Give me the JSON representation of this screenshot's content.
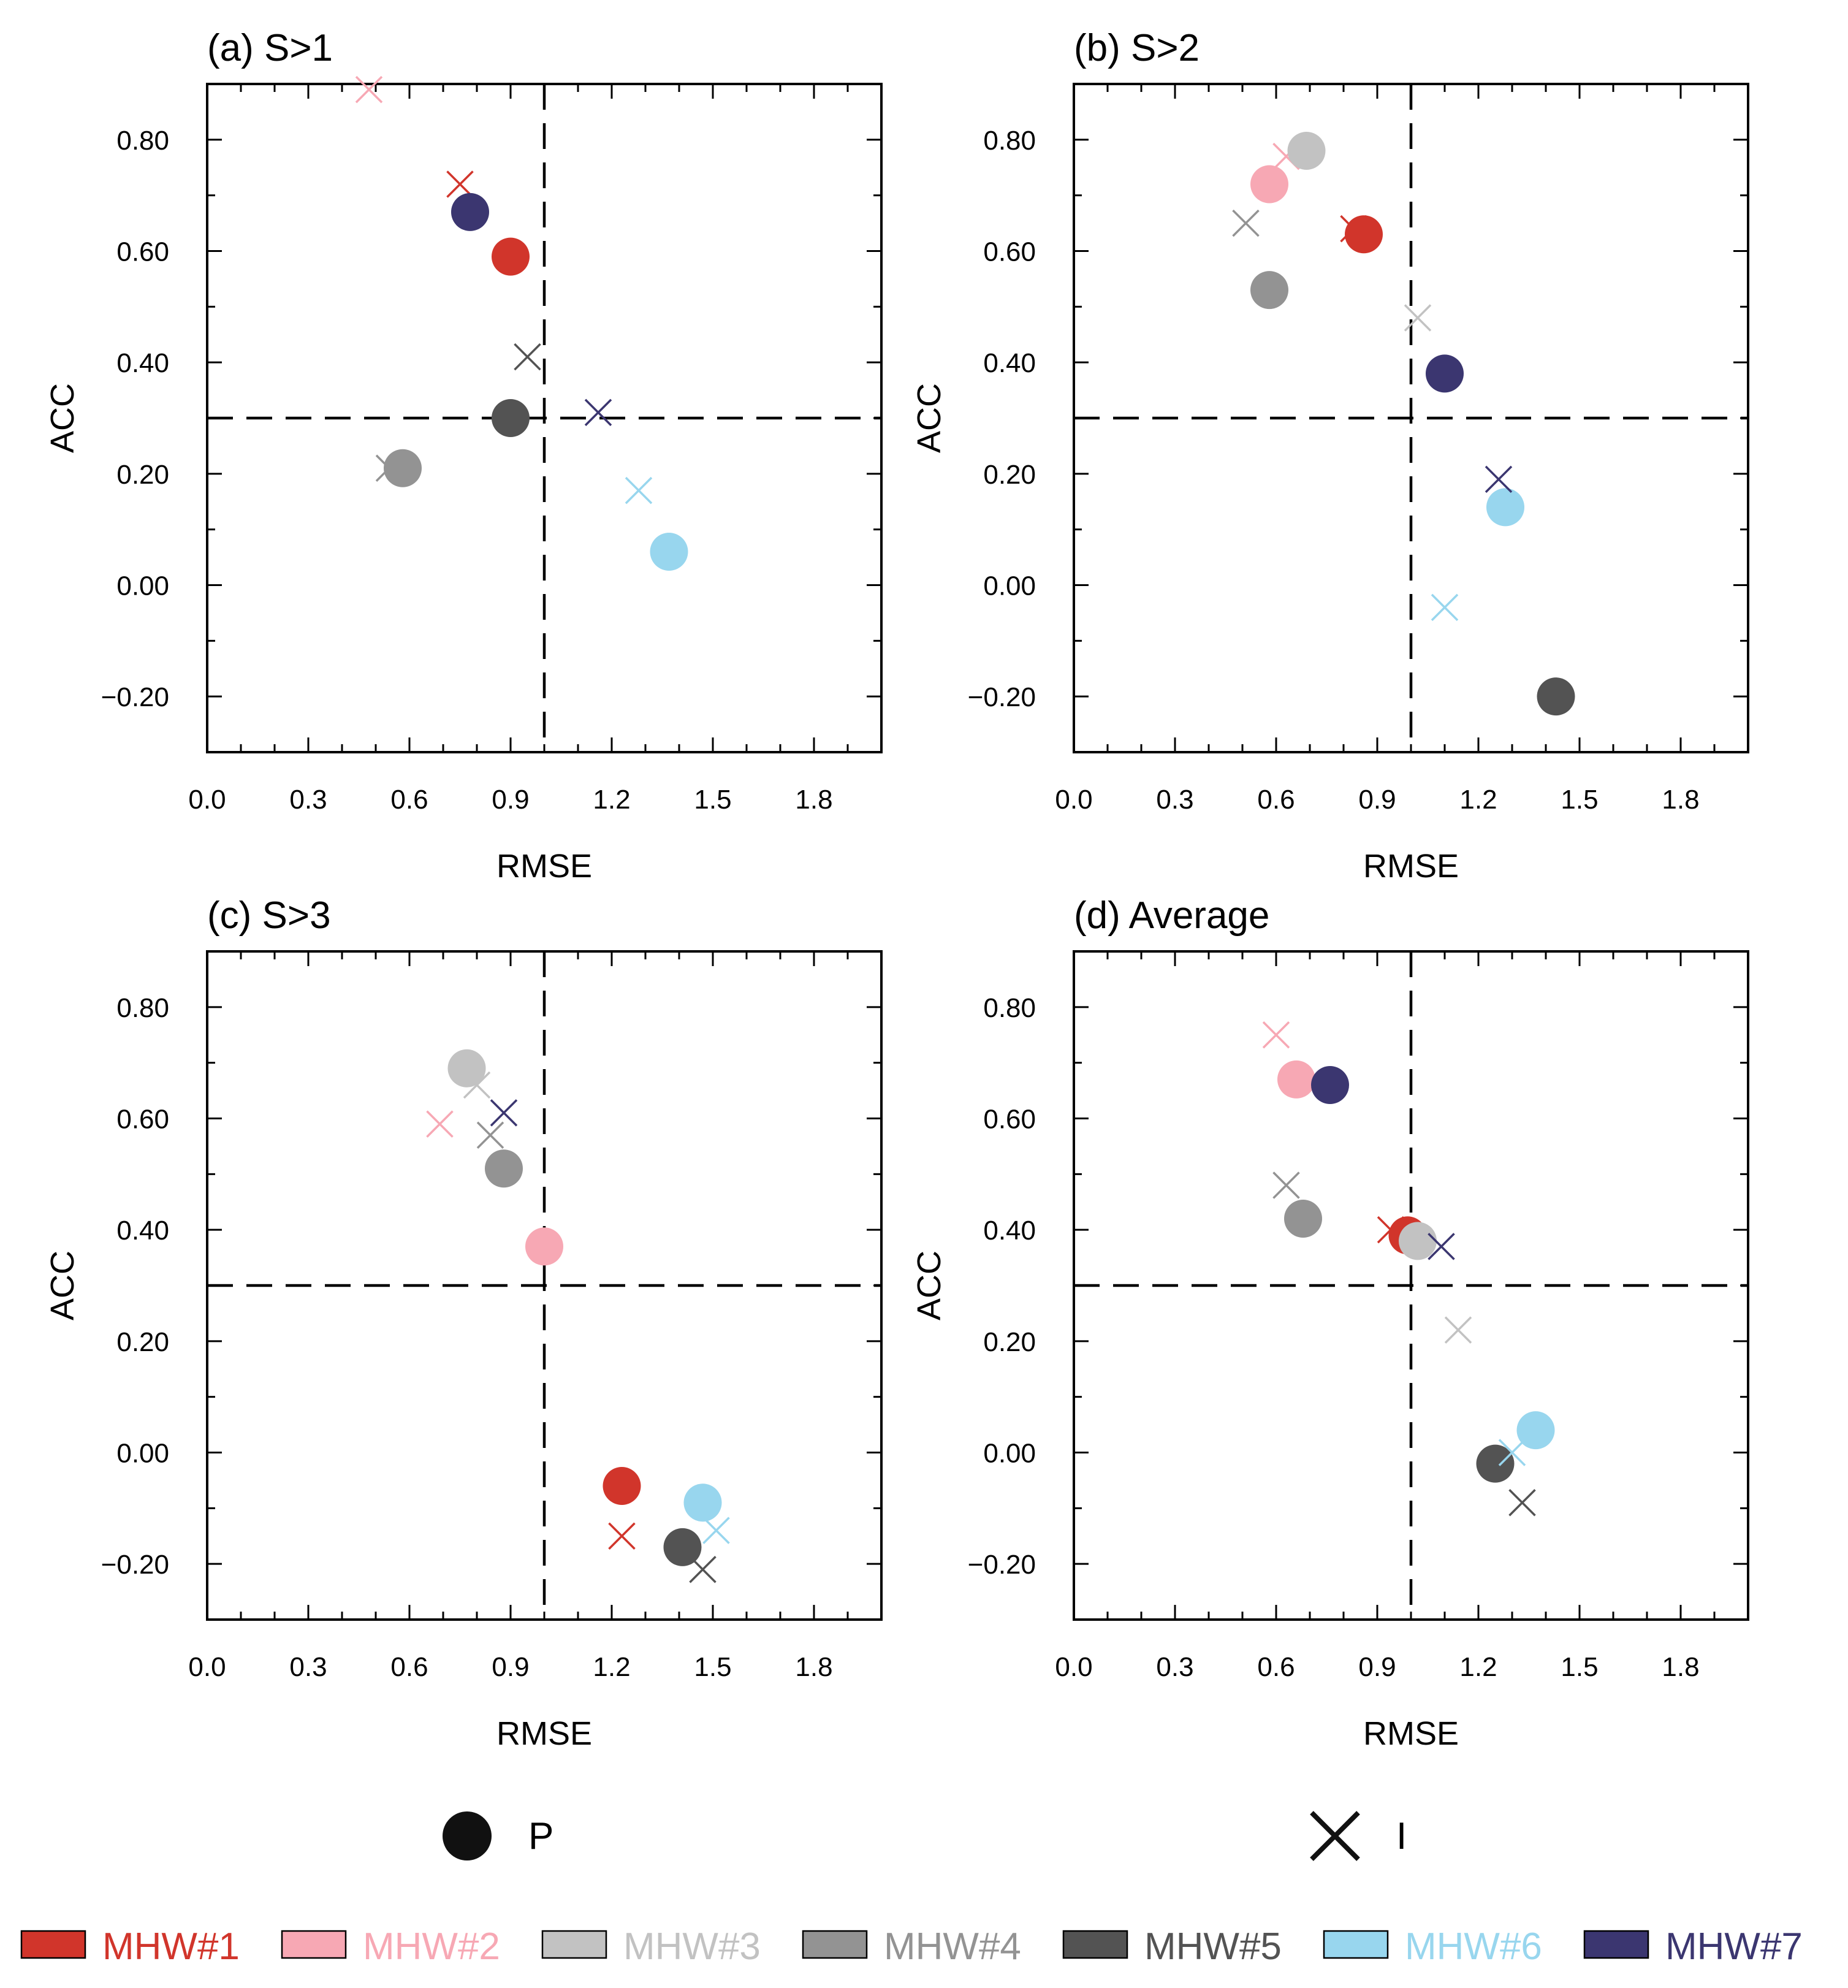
{
  "colors": {
    "MHW#1": "#d1352b",
    "MHW#2": "#f7a8b4",
    "MHW#3": "#c2c2c2",
    "MHW#4": "#939393",
    "MHW#5": "#535353",
    "MHW#6": "#98d6ee",
    "MHW#7": "#3b3670"
  },
  "marker_legend": [
    {
      "symbol": "circle",
      "label": "P"
    },
    {
      "symbol": "cross",
      "label": "I"
    }
  ],
  "color_legend": [
    "MHW#1",
    "MHW#2",
    "MHW#3",
    "MHW#4",
    "MHW#5",
    "MHW#6",
    "MHW#7"
  ],
  "chart_data": [
    {
      "type": "scatter",
      "title": "(a) S>1",
      "xlabel": "RMSE",
      "ylabel": "ACC",
      "xlim": [
        0.0,
        2.0
      ],
      "ylim": [
        -0.3,
        0.9
      ],
      "xticks": [
        "0.0",
        "0.3",
        "0.6",
        "0.9",
        "1.2",
        "1.5",
        "1.8"
      ],
      "yticks": [
        "−0.20",
        "0.00",
        "0.20",
        "0.40",
        "0.60",
        "0.80"
      ],
      "ref_lines": {
        "x": 1.0,
        "y": 0.3
      },
      "series": [
        {
          "name": "MHW#1",
          "P": [
            0.9,
            0.59
          ],
          "I": [
            0.75,
            0.72
          ]
        },
        {
          "name": "MHW#2",
          "P": null,
          "I": [
            0.48,
            0.89
          ]
        },
        {
          "name": "MHW#4",
          "P": [
            0.58,
            0.21
          ],
          "I": [
            0.54,
            0.21
          ]
        },
        {
          "name": "MHW#5",
          "P": [
            0.9,
            0.3
          ],
          "I": [
            0.95,
            0.41
          ]
        },
        {
          "name": "MHW#6",
          "P": [
            1.37,
            0.06
          ],
          "I": [
            1.28,
            0.17
          ]
        },
        {
          "name": "MHW#7",
          "P": [
            0.78,
            0.67
          ],
          "I": [
            1.16,
            0.31
          ]
        }
      ]
    },
    {
      "type": "scatter",
      "title": "(b) S>2",
      "xlabel": "RMSE",
      "ylabel": "ACC",
      "xlim": [
        0.0,
        2.0
      ],
      "ylim": [
        -0.3,
        0.9
      ],
      "xticks": [
        "0.0",
        "0.3",
        "0.6",
        "0.9",
        "1.2",
        "1.5",
        "1.8"
      ],
      "yticks": [
        "−0.20",
        "0.00",
        "0.20",
        "0.40",
        "0.60",
        "0.80"
      ],
      "ref_lines": {
        "x": 1.0,
        "y": 0.3
      },
      "series": [
        {
          "name": "MHW#1",
          "P": [
            0.86,
            0.63
          ],
          "I": [
            0.83,
            0.64
          ]
        },
        {
          "name": "MHW#2",
          "P": [
            0.58,
            0.72
          ],
          "I": [
            0.63,
            0.77
          ]
        },
        {
          "name": "MHW#3",
          "P": [
            0.69,
            0.78
          ],
          "I": [
            1.02,
            0.48
          ]
        },
        {
          "name": "MHW#4",
          "P": [
            0.58,
            0.53
          ],
          "I": [
            0.51,
            0.65
          ]
        },
        {
          "name": "MHW#5",
          "P": [
            1.43,
            -0.2
          ],
          "I": null
        },
        {
          "name": "MHW#6",
          "P": [
            1.28,
            0.14
          ],
          "I": [
            1.1,
            -0.04
          ]
        },
        {
          "name": "MHW#7",
          "P": [
            1.1,
            0.38
          ],
          "I": [
            1.26,
            0.19
          ]
        }
      ]
    },
    {
      "type": "scatter",
      "title": "(c) S>3",
      "xlabel": "RMSE",
      "ylabel": "ACC",
      "xlim": [
        0.0,
        2.0
      ],
      "ylim": [
        -0.3,
        0.9
      ],
      "xticks": [
        "0.0",
        "0.3",
        "0.6",
        "0.9",
        "1.2",
        "1.5",
        "1.8"
      ],
      "yticks": [
        "−0.20",
        "0.00",
        "0.20",
        "0.40",
        "0.60",
        "0.80"
      ],
      "ref_lines": {
        "x": 1.0,
        "y": 0.3
      },
      "series": [
        {
          "name": "MHW#1",
          "P": [
            1.23,
            -0.06
          ],
          "I": [
            1.23,
            -0.15
          ]
        },
        {
          "name": "MHW#2",
          "P": [
            1.0,
            0.37
          ],
          "I": [
            0.69,
            0.59
          ]
        },
        {
          "name": "MHW#3",
          "P": [
            0.77,
            0.69
          ],
          "I": [
            0.8,
            0.66
          ]
        },
        {
          "name": "MHW#4",
          "P": [
            0.88,
            0.51
          ],
          "I": [
            0.84,
            0.57
          ]
        },
        {
          "name": "MHW#5",
          "P": [
            1.41,
            -0.17
          ],
          "I": [
            1.47,
            -0.21
          ]
        },
        {
          "name": "MHW#6",
          "P": [
            1.47,
            -0.09
          ],
          "I": [
            1.51,
            -0.14
          ]
        },
        {
          "name": "MHW#7",
          "P": null,
          "I": [
            0.88,
            0.61
          ]
        }
      ]
    },
    {
      "type": "scatter",
      "title": "(d) Average",
      "xlabel": "RMSE",
      "ylabel": "ACC",
      "xlim": [
        0.0,
        2.0
      ],
      "ylim": [
        -0.3,
        0.9
      ],
      "xticks": [
        "0.0",
        "0.3",
        "0.6",
        "0.9",
        "1.2",
        "1.5",
        "1.8"
      ],
      "yticks": [
        "−0.20",
        "0.00",
        "0.20",
        "0.40",
        "0.60",
        "0.80"
      ],
      "ref_lines": {
        "x": 1.0,
        "y": 0.3
      },
      "series": [
        {
          "name": "MHW#1",
          "P": [
            0.99,
            0.39
          ],
          "I": [
            0.94,
            0.4
          ]
        },
        {
          "name": "MHW#2",
          "P": [
            0.66,
            0.67
          ],
          "I": [
            0.6,
            0.75
          ]
        },
        {
          "name": "MHW#3",
          "P": [
            1.02,
            0.38
          ],
          "I": [
            1.14,
            0.22
          ]
        },
        {
          "name": "MHW#4",
          "P": [
            0.68,
            0.42
          ],
          "I": [
            0.63,
            0.48
          ]
        },
        {
          "name": "MHW#5",
          "P": [
            1.25,
            -0.02
          ],
          "I": [
            1.33,
            -0.09
          ]
        },
        {
          "name": "MHW#6",
          "P": [
            1.37,
            0.04
          ],
          "I": [
            1.3,
            0.0
          ]
        },
        {
          "name": "MHW#7",
          "P": [
            0.76,
            0.66
          ],
          "I": [
            1.09,
            0.37
          ]
        }
      ]
    }
  ]
}
